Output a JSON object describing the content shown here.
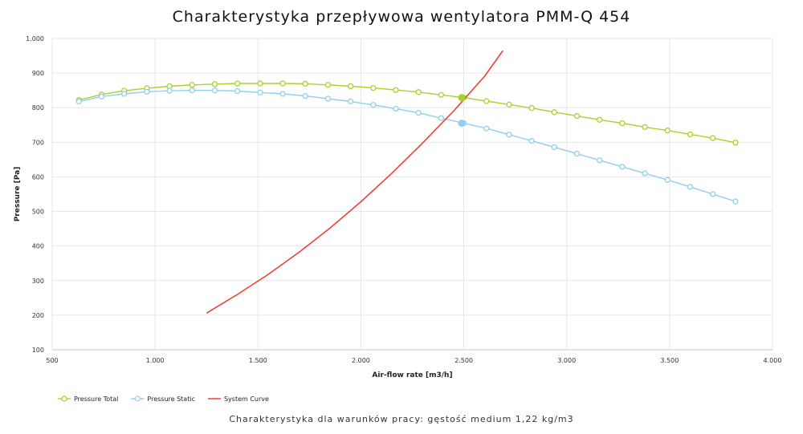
{
  "chart_data": {
    "type": "line",
    "title": "Charakterystyka przepływowa wentylatora PMM-Q 454",
    "subtitle": "Charakterystyka dla warunków pracy: gęstość medium 1,22 kg/m3",
    "xlabel": "Air-flow rate [m3/h]",
    "ylabel": "Pressure [Pa]",
    "xlim": [
      500,
      4000
    ],
    "ylim": [
      100,
      1000
    ],
    "x_ticks": [
      500,
      1000,
      1500,
      2000,
      2500,
      3000,
      3500,
      4000
    ],
    "x_tick_labels": [
      "500",
      "1.000",
      "1.500",
      "2.000",
      "2.500",
      "3.000",
      "3.500",
      "4.000"
    ],
    "y_ticks": [
      100,
      200,
      300,
      400,
      500,
      600,
      700,
      800,
      900,
      1000
    ],
    "y_tick_labels": [
      "100",
      "200",
      "300",
      "400",
      "500",
      "600",
      "700",
      "800",
      "900",
      "1.000"
    ],
    "grid": true,
    "legend": "bottom-left",
    "series": [
      {
        "name": "Pressure Total",
        "color": "#a6d22c",
        "marker": "circle",
        "x": [
          630,
          740,
          850,
          960,
          1070,
          1180,
          1290,
          1400,
          1510,
          1620,
          1730,
          1840,
          1950,
          2060,
          2170,
          2280,
          2390,
          2500,
          2610,
          2720,
          2830,
          2940,
          3050,
          3160,
          3270,
          3380,
          3490,
          3600,
          3710,
          3820
        ],
        "y": [
          822,
          838,
          849,
          856,
          862,
          866,
          868,
          870,
          870,
          870,
          869,
          866,
          862,
          857,
          851,
          845,
          837,
          829,
          819,
          809,
          799,
          787,
          776,
          765,
          755,
          744,
          734,
          723,
          712,
          699
        ]
      },
      {
        "name": "Pressure Static",
        "color": "#8fcff0",
        "marker": "circle",
        "x": [
          630,
          740,
          850,
          960,
          1070,
          1180,
          1290,
          1400,
          1510,
          1620,
          1730,
          1840,
          1950,
          2060,
          2170,
          2280,
          2390,
          2500,
          2610,
          2720,
          2830,
          2940,
          3050,
          3160,
          3270,
          3380,
          3490,
          3600,
          3710,
          3820
        ],
        "y": [
          818,
          832,
          840,
          846,
          849,
          850,
          850,
          848,
          844,
          840,
          834,
          826,
          818,
          808,
          797,
          785,
          770,
          755,
          740,
          722,
          704,
          686,
          667,
          648,
          629,
          610,
          591,
          571,
          550,
          529
        ]
      },
      {
        "name": "System Curve",
        "color": "#ee4035",
        "marker": "none",
        "x": [
          1250,
          1400,
          1550,
          1700,
          1850,
          2000,
          2150,
          2300,
          2450,
          2600,
          2690
        ],
        "y": [
          206,
          260,
          318,
          382,
          452,
          528,
          610,
          698,
          790,
          890,
          965
        ]
      }
    ],
    "operating_points": [
      {
        "series": "Pressure Total",
        "x": 2490,
        "y": 829
      },
      {
        "series": "Pressure Static",
        "x": 2490,
        "y": 755
      }
    ]
  }
}
